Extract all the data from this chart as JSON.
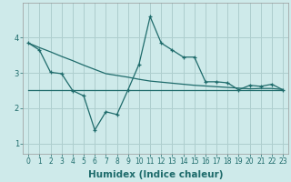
{
  "xlabel": "Humidex (Indice chaleur)",
  "bg_color": "#ceeaea",
  "grid_color": "#aecece",
  "line_color": "#1e6b6b",
  "x_values": [
    0,
    1,
    2,
    3,
    4,
    5,
    6,
    7,
    8,
    9,
    10,
    11,
    12,
    13,
    14,
    15,
    16,
    17,
    18,
    19,
    20,
    21,
    22,
    23
  ],
  "jagged_y": [
    3.85,
    3.65,
    3.02,
    2.98,
    2.5,
    2.35,
    1.38,
    1.9,
    1.82,
    2.52,
    3.25,
    4.6,
    3.85,
    3.65,
    3.45,
    3.45,
    2.75,
    2.75,
    2.72,
    2.52,
    2.65,
    2.62,
    2.68,
    2.52
  ],
  "trend_y": [
    3.85,
    3.72,
    3.6,
    3.47,
    3.35,
    3.22,
    3.1,
    2.98,
    2.93,
    2.88,
    2.82,
    2.77,
    2.74,
    2.71,
    2.68,
    2.65,
    2.63,
    2.61,
    2.59,
    2.57,
    2.55,
    2.56,
    2.56,
    2.53
  ],
  "flat_y": [
    2.52,
    2.52,
    2.52,
    2.52,
    2.52,
    2.52,
    2.52,
    2.52,
    2.52,
    2.52,
    2.52,
    2.52,
    2.52,
    2.52,
    2.52,
    2.52,
    2.52,
    2.52,
    2.52,
    2.52,
    2.52,
    2.52,
    2.52,
    2.52
  ],
  "ylim": [
    0.7,
    5.0
  ],
  "yticks": [
    1,
    2,
    3,
    4
  ],
  "xlim": [
    -0.5,
    23.5
  ],
  "tick_fontsize": 5.5,
  "label_fontsize": 7.5
}
